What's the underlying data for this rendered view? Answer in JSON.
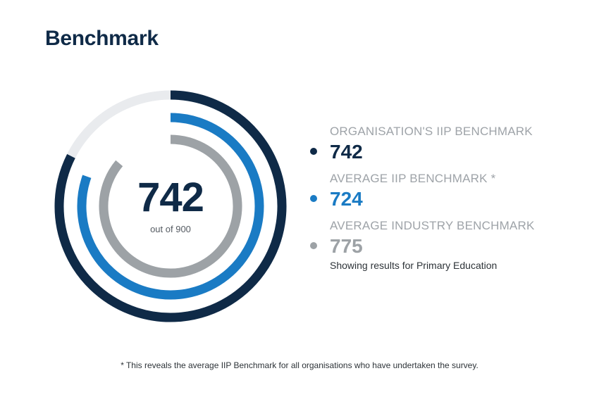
{
  "page": {
    "title": "Benchmark"
  },
  "chart_data": {
    "type": "radial-bar",
    "max": 900,
    "center": {
      "value": "742",
      "subtitle": "out of 900"
    },
    "series": [
      {
        "name": "ORGANISATION'S IIP BENCHMARK",
        "value": 742,
        "label": "742",
        "color": "#0f2a47"
      },
      {
        "name": "AVERAGE IIP BENCHMARK *",
        "value": 724,
        "label": "724",
        "color": "#1a7bc4"
      },
      {
        "name": "AVERAGE INDUSTRY BENCHMARK",
        "value": 775,
        "label": "775",
        "color": "#9da2a6",
        "note": "Showing results for Primary Education"
      }
    ],
    "track_color": "#e9ebee"
  },
  "footnote": "* This reveals the average IIP Benchmark for all organisations who have undertaken the survey."
}
